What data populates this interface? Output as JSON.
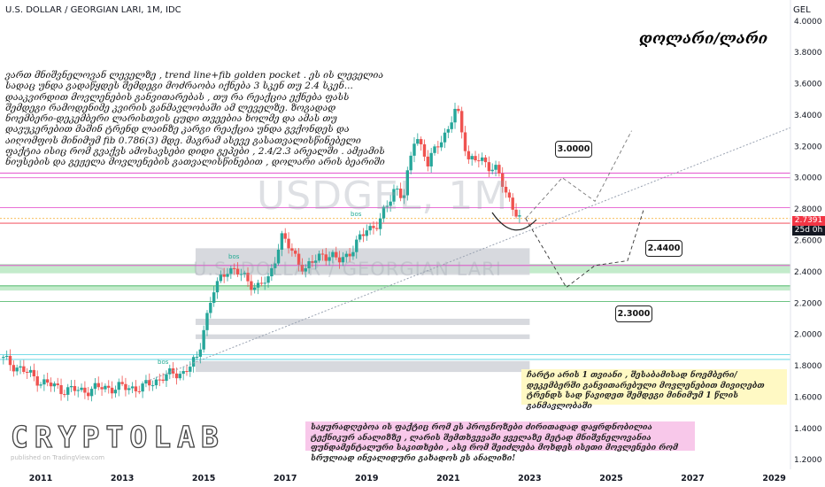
{
  "header": {
    "symbol_line": "U.S. DOLLAR / GEORGIAN LARI, 1M, IDC",
    "currency": "GEL"
  },
  "title_overlay": "დოლარი/ლარი",
  "watermark": {
    "ticker": "USDGEL, 1M",
    "name": "U.S. DOLLAR / GEORGIAN LARI"
  },
  "logo": {
    "text": "CRYPTOLAB",
    "sub": "published on TradingView.com"
  },
  "note_text": "ვართ მნიშვნელოვან ლეველზე , trend line+fib golden pocket . ეს ის ლეველია სადაც უნდა გადაწყდეს შემდეგი მოძრაობა იქნება 3 სკენ თუ 2.4 სკენ... დააკვირდით მოვლენების განვითარებას , თუ რა რეაქცია ექნება ფასს შემდეგი რამოდენიმე კვირის განმავლობაში ამ ლეველზე. ზოგადად ნოემბერი-დეკემბერი ლარისთვის ცუდი თვეებია ხოლმე და ამას თუ დავუკერებით მაშინ ტრენდ ლაინზე კარგი რეაქცია უნდა გვქონდეს და აიღომფოს მინიმუმ fib 0.786(3) მდე. მაგრამ ასევე გასათვალისწინებელი ფაქტია ისიც რომ გვაქვს ამოსავსები დიდი გეპები , 2.4/2.3 არეალში . ამჟამის ნიუსების და გეჟელა მოვლენების გათვალისწინებით , დოლარი არის ბეარიში",
  "box_yellow": "ჩარტი არის 1 თვიანი , შესაბამისად ნოემბერი/დეკემბერში განვითარებული მოვლენებით მივიღებთ ტრენდს სად წავიდეთ შემდეგი მინიმუმ 1 წლის განმავლობაში",
  "box_pink": "საყურადღებოა ის ფაქტიც რომ ეს პროგნოზები ძირითადად დაყრდნობილია ტექნიკურ ანალიზზე , ლარის შემთხვევაში ყველაზე მეტად მნიშვნელოვანია ფუნდამენტალური საკითხები , ასე რომ შეიძლება მოხდეს ისეთი მოვლენები რომ სრულიად ინვალიდური გახადოს ეს ანალიზი!",
  "callouts": [
    {
      "label": "3.0000",
      "left": 627,
      "top": 159
    },
    {
      "label": "2.4400",
      "left": 729,
      "top": 271
    },
    {
      "label": "2.3000",
      "left": 695,
      "top": 345
    }
  ],
  "price_tag": {
    "price": "2.7391",
    "time": "25d 0h"
  },
  "bos_labels": [
    "bos",
    "bos",
    "bos"
  ],
  "colors": {
    "up": "#26a69a",
    "down": "#ef5350",
    "trend": "#9aa3b2",
    "pink": "#e040c8",
    "green": "#3cb05a",
    "cyan": "#4dd0e1"
  },
  "chart_data": {
    "type": "candlestick",
    "title": "U.S. DOLLAR / GEORGIAN LARI, 1M, IDC",
    "x_ticks": [
      "2011",
      "2013",
      "2015",
      "2017",
      "2019",
      "2021",
      "2023",
      "2025",
      "2027",
      "2029"
    ],
    "y_ticks": [
      "4.0000",
      "3.8000",
      "3.6000",
      "3.4000",
      "3.2000",
      "3.0000",
      "2.8000",
      "2.6000",
      "2.4000",
      "2.2000",
      "2.0000",
      "1.8000",
      "1.6000",
      "1.4000",
      "1.2000"
    ],
    "ylim": [
      1.15,
      4.05
    ],
    "xlim": [
      2010.0,
      2029.4
    ],
    "grid": false,
    "approx_closes": [
      [
        2010.0,
        1.85
      ],
      [
        2010.5,
        1.78
      ],
      [
        2011.0,
        1.7
      ],
      [
        2011.5,
        1.65
      ],
      [
        2012.0,
        1.64
      ],
      [
        2012.5,
        1.66
      ],
      [
        2013.0,
        1.66
      ],
      [
        2013.5,
        1.66
      ],
      [
        2014.0,
        1.73
      ],
      [
        2014.5,
        1.76
      ],
      [
        2014.85,
        1.84
      ],
      [
        2015.0,
        2.05
      ],
      [
        2015.25,
        2.28
      ],
      [
        2015.6,
        2.43
      ],
      [
        2015.9,
        2.38
      ],
      [
        2016.3,
        2.3
      ],
      [
        2016.6,
        2.35
      ],
      [
        2016.9,
        2.63
      ],
      [
        2017.1,
        2.55
      ],
      [
        2017.5,
        2.41
      ],
      [
        2017.9,
        2.52
      ],
      [
        2018.3,
        2.47
      ],
      [
        2018.7,
        2.55
      ],
      [
        2019.0,
        2.68
      ],
      [
        2019.3,
        2.7
      ],
      [
        2019.7,
        2.95
      ],
      [
        2019.9,
        2.86
      ],
      [
        2020.2,
        3.3
      ],
      [
        2020.5,
        3.08
      ],
      [
        2020.8,
        3.25
      ],
      [
        2021.0,
        3.3
      ],
      [
        2021.2,
        3.45
      ],
      [
        2021.5,
        3.12
      ],
      [
        2021.9,
        3.1
      ],
      [
        2022.2,
        3.05
      ],
      [
        2022.4,
        2.9
      ],
      [
        2022.6,
        2.82
      ],
      [
        2022.75,
        2.74
      ]
    ],
    "trendline": [
      [
        2013.6,
        1.7
      ],
      [
        2029.4,
        3.32
      ]
    ],
    "horizontal_levels": [
      {
        "y": 3.03,
        "color": "pink"
      },
      {
        "y": 3.0,
        "color": "pink"
      },
      {
        "y": 2.81,
        "color": "pink"
      },
      {
        "y": 2.74,
        "color": "orange"
      },
      {
        "y": 2.71,
        "color": "red"
      },
      {
        "y": 2.44,
        "color": "pink"
      },
      {
        "y": 2.31,
        "color": "green"
      },
      {
        "y": 2.21,
        "color": "green"
      },
      {
        "y": 1.87,
        "color": "cyan"
      },
      {
        "y": 1.84,
        "color": "cyan"
      }
    ],
    "zones": [
      {
        "y1": 2.39,
        "y2": 2.45,
        "color": "green"
      },
      {
        "y1": 2.28,
        "y2": 2.31,
        "color": "green"
      },
      {
        "y1": 2.38,
        "y2": 2.55,
        "color": "gray"
      },
      {
        "y1": 2.06,
        "y2": 2.1,
        "color": "gray"
      },
      {
        "y1": 1.97,
        "y2": 2.0,
        "color": "gray"
      },
      {
        "y1": 1.76,
        "y2": 1.83,
        "color": "gray"
      }
    ],
    "projection_paths": [
      [
        [
          2022.9,
          2.74
        ],
        [
          2023.8,
          3.0
        ],
        [
          2024.6,
          2.85
        ],
        [
          2025.5,
          3.3
        ]
      ],
      [
        [
          2022.9,
          2.74
        ],
        [
          2023.9,
          2.3
        ],
        [
          2024.6,
          2.44
        ],
        [
          2025.4,
          2.47
        ],
        [
          2025.8,
          2.8
        ]
      ]
    ]
  }
}
